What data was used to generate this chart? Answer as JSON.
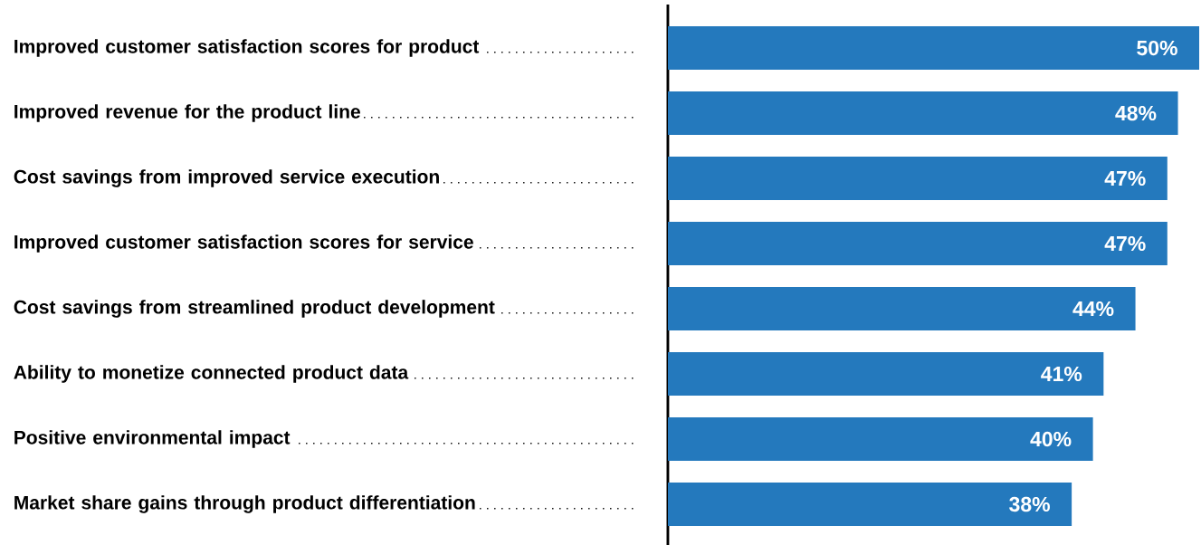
{
  "chart_data": {
    "type": "bar",
    "orientation": "horizontal",
    "categories": [
      "Improved customer satisfaction scores for product",
      "Improved revenue for the product line",
      "Cost savings from improved service execution",
      "Improved customer satisfaction scores for service",
      "Cost savings from streamlined product development",
      "Ability to monetize connected product data",
      "Positive environmental impact",
      "Market share gains through product differentiation"
    ],
    "values": [
      50,
      48,
      47,
      47,
      44,
      41,
      40,
      38
    ],
    "value_labels": [
      "50%",
      "48%",
      "47%",
      "47%",
      "44%",
      "41%",
      "40%",
      "38%"
    ],
    "color": "#2479bd",
    "xlim": [
      0,
      50
    ],
    "tick_labels": "y"
  }
}
